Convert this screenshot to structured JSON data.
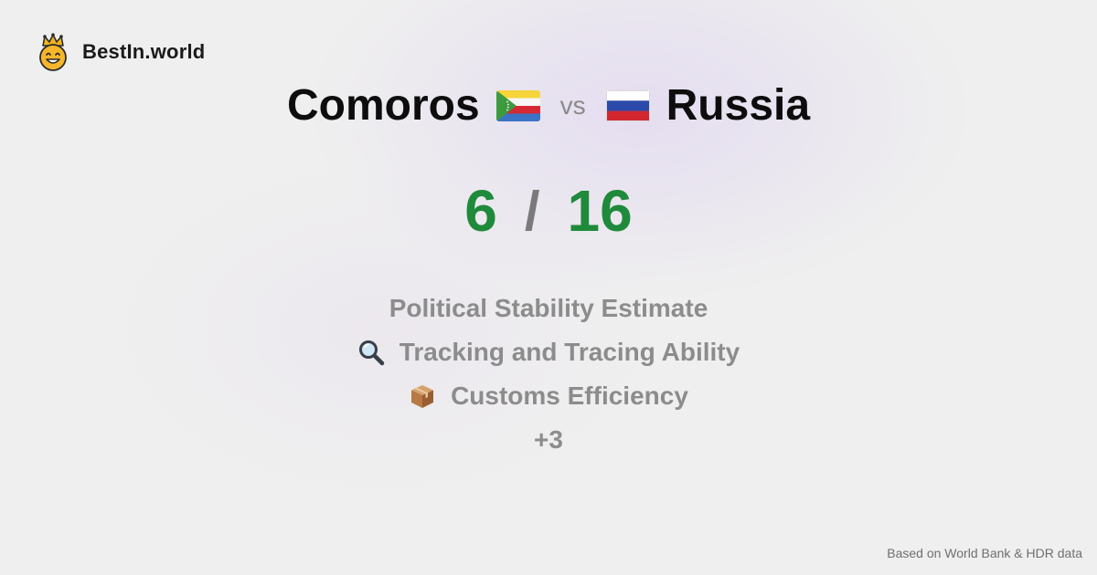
{
  "brand": {
    "name": "BestIn.world",
    "logo_icon": "crowned-smiley-icon"
  },
  "comparison": {
    "left_country": "Comoros",
    "left_flag_icon": "comoros-flag-icon",
    "vs_label": "vs",
    "right_country": "Russia",
    "right_flag_icon": "russia-flag-icon"
  },
  "score": {
    "left": "6",
    "separator": "/",
    "right": "16",
    "color": "#1f8a3b"
  },
  "metrics": [
    {
      "label": "Political Stability Estimate",
      "icon": ""
    },
    {
      "label": "Tracking and Tracing Ability",
      "icon": "magnifying-glass-icon"
    },
    {
      "label": "Customs Efficiency",
      "icon": "package-icon"
    }
  ],
  "more_label": "+3",
  "footer": {
    "source": "Based on World Bank & HDR data"
  }
}
